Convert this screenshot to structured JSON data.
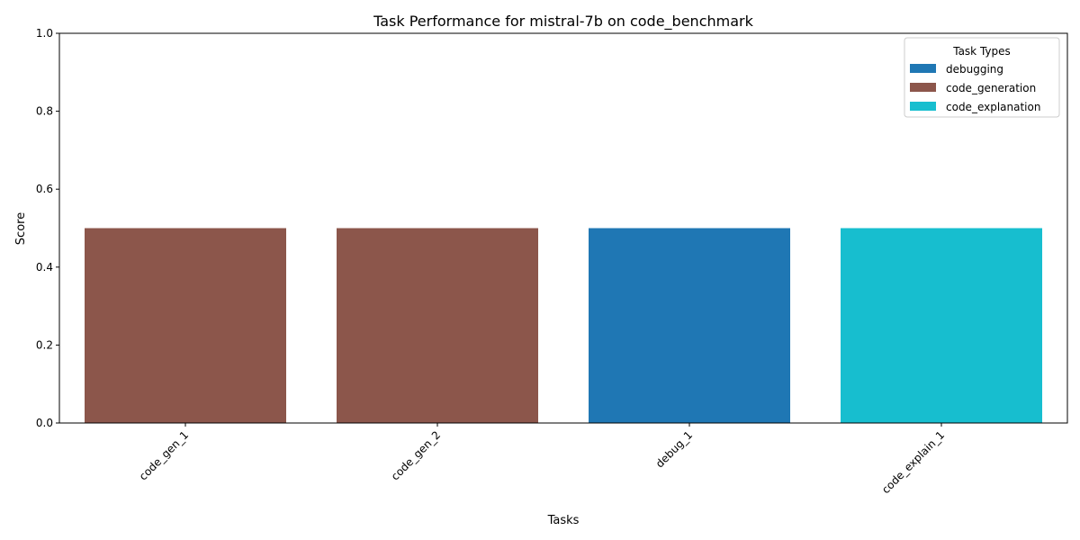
{
  "chart_data": {
    "type": "bar",
    "title": "Task Performance for mistral-7b on code_benchmark",
    "xlabel": "Tasks",
    "ylabel": "Score",
    "ylim": [
      0,
      1
    ],
    "yticks": [
      "0.0",
      "0.2",
      "0.4",
      "0.6",
      "0.8",
      "1.0"
    ],
    "categories": [
      "code_gen_1",
      "code_gen_2",
      "debug_1",
      "code_explain_1"
    ],
    "values": [
      0.5,
      0.5,
      0.5,
      0.5
    ],
    "bar_types": [
      "code_generation",
      "code_generation",
      "debugging",
      "code_explanation"
    ],
    "grid": false,
    "legend": {
      "title": "Task Types",
      "placement": "top-right",
      "entries": [
        {
          "label": "debugging",
          "color": "#1f77b4"
        },
        {
          "label": "code_generation",
          "color": "#8c564b"
        },
        {
          "label": "code_explanation",
          "color": "#17becf"
        }
      ]
    }
  }
}
